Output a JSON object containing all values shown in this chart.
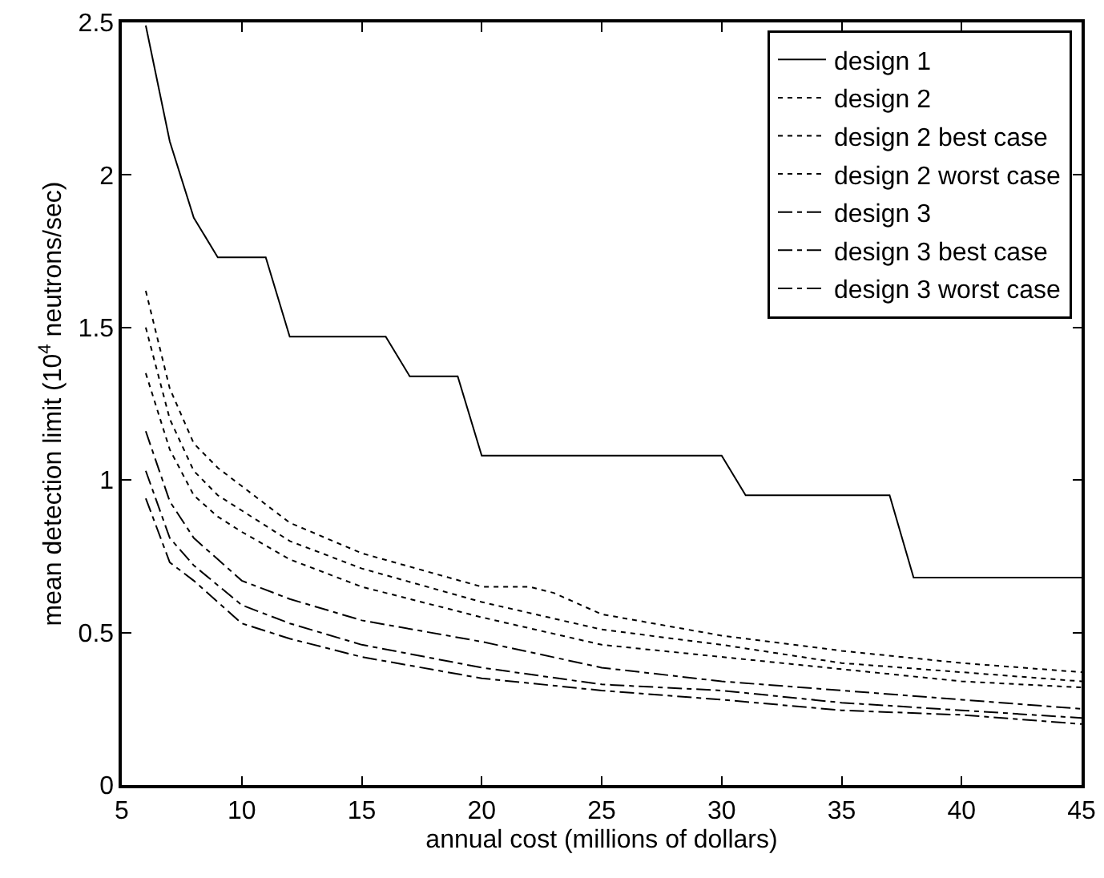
{
  "chart_data": {
    "type": "line",
    "xlabel": "annual cost (millions of dollars)",
    "ylabel": "mean detection limit (10$^{4}$ neutrons/sec)",
    "xlim": [
      5,
      45
    ],
    "xticks": [
      5,
      10,
      15,
      20,
      25,
      30,
      35,
      40,
      45
    ],
    "ylim": [
      0,
      2.5
    ],
    "yticks": [
      0,
      0.5,
      1,
      1.5,
      2,
      2.5
    ],
    "grid": false,
    "legend": "top right",
    "marker": "none",
    "series": [
      {
        "name": "design 1",
        "color": "#000000",
        "line_style": "solid",
        "x": [
          6,
          7,
          8,
          9,
          11,
          12,
          16,
          17,
          19,
          20,
          30,
          31,
          37,
          38,
          45
        ],
        "values": [
          2.49,
          2.11,
          1.86,
          1.73,
          1.73,
          1.47,
          1.47,
          1.34,
          1.34,
          1.08,
          1.08,
          0.95,
          0.95,
          0.68,
          0.68
        ]
      },
      {
        "name": "design 2",
        "color": "#000000",
        "line_style": "dotted",
        "x": [
          6,
          7,
          8,
          9,
          10,
          12,
          15,
          20,
          25,
          30,
          35,
          40,
          45
        ],
        "values": [
          1.5,
          1.2,
          1.03,
          0.95,
          0.9,
          0.8,
          0.71,
          0.6,
          0.51,
          0.46,
          0.4,
          0.37,
          0.34
        ]
      },
      {
        "name": "design 2 best case",
        "color": "#000000",
        "line_style": "dotted",
        "x": [
          6,
          7,
          8,
          9,
          10,
          12,
          15,
          20,
          25,
          30,
          35,
          40,
          45
        ],
        "values": [
          1.35,
          1.1,
          0.95,
          0.88,
          0.83,
          0.74,
          0.65,
          0.55,
          0.46,
          0.42,
          0.38,
          0.34,
          0.32
        ]
      },
      {
        "name": "design 2 worst case",
        "color": "#000000",
        "line_style": "dotted",
        "x": [
          6,
          7,
          8,
          9,
          10,
          12,
          15,
          20,
          22,
          23,
          25,
          30,
          35,
          40,
          45
        ],
        "values": [
          1.62,
          1.3,
          1.12,
          1.04,
          0.98,
          0.86,
          0.76,
          0.65,
          0.65,
          0.63,
          0.56,
          0.49,
          0.44,
          0.4,
          0.37
        ]
      },
      {
        "name": "design 3",
        "color": "#000000",
        "line_style": "dashdot",
        "x": [
          6,
          7,
          8,
          10,
          12,
          15,
          20,
          25,
          30,
          35,
          40,
          45
        ],
        "values": [
          1.03,
          0.81,
          0.72,
          0.59,
          0.53,
          0.46,
          0.385,
          0.33,
          0.31,
          0.27,
          0.245,
          0.22
        ]
      },
      {
        "name": "design 3 best case",
        "color": "#000000",
        "line_style": "dashdot",
        "x": [
          6,
          7,
          8,
          10,
          12,
          15,
          20,
          25,
          30,
          35,
          40,
          45
        ],
        "values": [
          0.94,
          0.73,
          0.67,
          0.53,
          0.48,
          0.42,
          0.35,
          0.31,
          0.28,
          0.245,
          0.23,
          0.2
        ]
      },
      {
        "name": "design 3 worst case",
        "color": "#000000",
        "line_style": "dashdot",
        "x": [
          6,
          7,
          8,
          10,
          12,
          15,
          20,
          25,
          30,
          35,
          40,
          45
        ],
        "values": [
          1.16,
          0.93,
          0.81,
          0.67,
          0.61,
          0.54,
          0.47,
          0.385,
          0.34,
          0.31,
          0.28,
          0.25
        ]
      }
    ]
  }
}
